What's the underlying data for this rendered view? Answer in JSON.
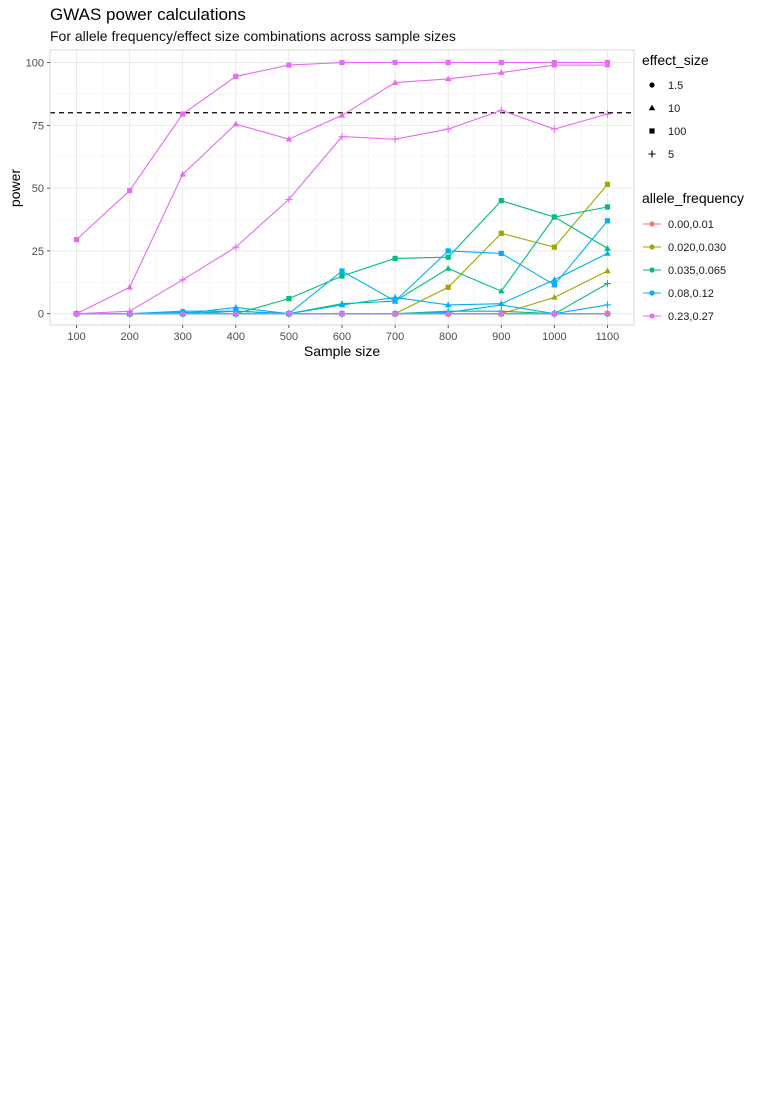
{
  "chart_data": {
    "type": "line",
    "title": "GWAS power calculations",
    "subtitle": "For allele frequency/effect size combinations across sample sizes",
    "xlabel": "Sample size",
    "ylabel": "power",
    "x": [
      100,
      200,
      300,
      400,
      500,
      600,
      700,
      800,
      900,
      1000,
      1100
    ],
    "xlim": [
      50,
      1150
    ],
    "ylim": [
      -4.5,
      105
    ],
    "yticks": [
      0,
      25,
      50,
      75,
      100
    ],
    "grid": true,
    "reference_line": {
      "y": 80,
      "style": "dashed",
      "color": "#000000"
    },
    "legend_position": "right",
    "effect_size_legend": {
      "title": "effect_size",
      "items": [
        {
          "label": "1.5",
          "shape": "circle"
        },
        {
          "label": "10",
          "shape": "triangle"
        },
        {
          "label": "100",
          "shape": "square"
        },
        {
          "label": "5",
          "shape": "plus"
        }
      ]
    },
    "allele_frequency_legend": {
      "title": "allele_frequency",
      "items": [
        {
          "label": "0.00,0.01",
          "color": "#F8766D"
        },
        {
          "label": "0.020,0.030",
          "color": "#A3A500"
        },
        {
          "label": "0.035,0.065",
          "color": "#00BF7D"
        },
        {
          "label": "0.08,0.12",
          "color": "#00B0F6"
        },
        {
          "label": "0.23,0.27",
          "color": "#E76BF3"
        }
      ]
    },
    "series": [
      {
        "allele_frequency": "0.00,0.01",
        "effect_size": "1.5",
        "color": "#F8766D",
        "shape": "circle",
        "values": [
          0,
          0,
          0,
          0,
          0,
          0,
          0,
          0,
          0,
          0,
          0
        ]
      },
      {
        "allele_frequency": "0.00,0.01",
        "effect_size": "10",
        "color": "#F8766D",
        "shape": "triangle",
        "values": [
          0,
          0,
          0,
          0,
          0,
          0,
          0,
          0,
          0,
          0,
          0
        ]
      },
      {
        "allele_frequency": "0.00,0.01",
        "effect_size": "100",
        "color": "#F8766D",
        "shape": "square",
        "values": [
          0,
          0,
          0,
          0,
          0,
          0,
          0,
          0,
          0,
          0,
          0
        ]
      },
      {
        "allele_frequency": "0.00,0.01",
        "effect_size": "5",
        "color": "#F8766D",
        "shape": "plus",
        "values": [
          0,
          0,
          0,
          0,
          0,
          0,
          0,
          0,
          0,
          0,
          0
        ]
      },
      {
        "allele_frequency": "0.020,0.030",
        "effect_size": "1.5",
        "color": "#A3A500",
        "shape": "circle",
        "values": [
          0,
          0,
          0,
          0,
          0,
          0,
          0,
          0,
          0,
          0,
          0
        ]
      },
      {
        "allele_frequency": "0.020,0.030",
        "effect_size": "10",
        "color": "#A3A500",
        "shape": "triangle",
        "values": [
          0,
          0,
          0,
          0,
          0,
          0,
          0,
          0,
          0,
          6.5,
          17
        ]
      },
      {
        "allele_frequency": "0.020,0.030",
        "effect_size": "100",
        "color": "#A3A500",
        "shape": "square",
        "values": [
          0,
          0,
          0,
          0,
          0,
          0,
          0,
          10.5,
          32,
          26.5,
          51.5
        ]
      },
      {
        "allele_frequency": "0.020,0.030",
        "effect_size": "5",
        "color": "#A3A500",
        "shape": "plus",
        "values": [
          0,
          0,
          0,
          0,
          0,
          0,
          0,
          0,
          0,
          0,
          0
        ]
      },
      {
        "allele_frequency": "0.035,0.065",
        "effect_size": "1.5",
        "color": "#00BF7D",
        "shape": "circle",
        "values": [
          0,
          0,
          0,
          0,
          0,
          0,
          0,
          0,
          0,
          0,
          0
        ]
      },
      {
        "allele_frequency": "0.035,0.065",
        "effect_size": "10",
        "color": "#00BF7D",
        "shape": "triangle",
        "values": [
          0,
          0,
          0,
          1,
          0,
          4,
          5,
          18,
          9,
          38.5,
          26
        ]
      },
      {
        "allele_frequency": "0.035,0.065",
        "effect_size": "100",
        "color": "#00BF7D",
        "shape": "square",
        "values": [
          0,
          0,
          0,
          0,
          6,
          15,
          22,
          22.5,
          45,
          38.5,
          42.5
        ]
      },
      {
        "allele_frequency": "0.035,0.065",
        "effect_size": "5",
        "color": "#00BF7D",
        "shape": "plus",
        "values": [
          0,
          0,
          0,
          0,
          0,
          0,
          0,
          1,
          1,
          0,
          12
        ]
      },
      {
        "allele_frequency": "0.08,0.12",
        "effect_size": "1.5",
        "color": "#00B0F6",
        "shape": "circle",
        "values": [
          0,
          0,
          1,
          1,
          0,
          0,
          0,
          0,
          0,
          0,
          0
        ]
      },
      {
        "allele_frequency": "0.08,0.12",
        "effect_size": "10",
        "color": "#00B0F6",
        "shape": "triangle",
        "values": [
          0,
          0,
          0,
          2.5,
          0,
          3.5,
          6.5,
          3.5,
          4,
          13.5,
          24
        ]
      },
      {
        "allele_frequency": "0.08,0.12",
        "effect_size": "100",
        "color": "#00B0F6",
        "shape": "square",
        "values": [
          0,
          0,
          0.5,
          0,
          0,
          17,
          5,
          25,
          24,
          11.5,
          37
        ]
      },
      {
        "allele_frequency": "0.08,0.12",
        "effect_size": "5",
        "color": "#00B0F6",
        "shape": "plus",
        "values": [
          0,
          0,
          0,
          0,
          0,
          0,
          0,
          0.5,
          3.5,
          0,
          3.5
        ]
      },
      {
        "allele_frequency": "0.23,0.27",
        "effect_size": "1.5",
        "color": "#E76BF3",
        "shape": "circle",
        "values": [
          0,
          0,
          0,
          0,
          0,
          0,
          0,
          0,
          0,
          0,
          0
        ]
      },
      {
        "allele_frequency": "0.23,0.27",
        "effect_size": "10",
        "color": "#E76BF3",
        "shape": "triangle",
        "values": [
          0,
          10.5,
          55.5,
          75.5,
          69.5,
          79,
          92,
          93.5,
          96,
          99,
          99
        ]
      },
      {
        "allele_frequency": "0.23,0.27",
        "effect_size": "100",
        "color": "#E76BF3",
        "shape": "square",
        "values": [
          29.5,
          49,
          79.5,
          94.5,
          99,
          100,
          100,
          100,
          100,
          100,
          100
        ]
      },
      {
        "allele_frequency": "0.23,0.27",
        "effect_size": "5",
        "color": "#E76BF3",
        "shape": "plus",
        "values": [
          0,
          1,
          13.5,
          26.5,
          45.5,
          70.5,
          69.5,
          73.5,
          81,
          73.5,
          79.5
        ]
      }
    ]
  }
}
